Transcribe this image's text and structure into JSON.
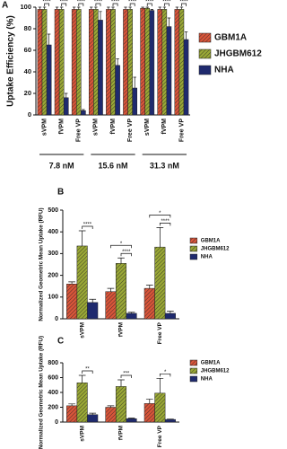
{
  "chart_data": [
    {
      "type": "bar",
      "panel": "A",
      "y_label": "Uptake Efficiency (%)",
      "categories": [
        "sVPM",
        "fVPM",
        "Free VP",
        "sVPM",
        "fVPM",
        "Free VP",
        "sVPM",
        "fVPM",
        "Free VP"
      ],
      "groups": [
        "7.8 nM",
        "15.6 nM",
        "31.3 nM"
      ],
      "series": [
        {
          "name": "GBM1A",
          "color": "#d9553a",
          "hatch": true,
          "values": [
            98,
            98,
            98,
            98,
            98,
            98,
            99,
            98,
            98
          ],
          "errors": [
            2,
            2,
            2,
            2,
            2,
            2,
            1,
            2,
            2
          ]
        },
        {
          "name": "JHGBM612",
          "color": "#9aa836",
          "hatch": true,
          "values": [
            98,
            98,
            98,
            98,
            98,
            98,
            99,
            98,
            98
          ],
          "errors": [
            2,
            2,
            2,
            2,
            2,
            2,
            1,
            2,
            2
          ]
        },
        {
          "name": "NHA",
          "color": "#1f2a6e",
          "hatch": false,
          "values": [
            65,
            16,
            4,
            88,
            46,
            25,
            97,
            82,
            70
          ],
          "errors": [
            10,
            4,
            1,
            8,
            6,
            10,
            1,
            8,
            7
          ]
        }
      ],
      "annotations": [
        [
          "****"
        ],
        [
          "****"
        ],
        [
          "****"
        ],
        [
          "****"
        ],
        [
          "****"
        ],
        [
          "****"
        ],
        [
          "****"
        ],
        [
          "****"
        ],
        [
          "****"
        ]
      ],
      "ylim": [
        0,
        100
      ],
      "yticks": [
        0,
        20,
        40,
        60,
        80,
        100
      ]
    },
    {
      "type": "bar",
      "panel": "B",
      "y_label": "Normalized Geometric Mean Uptake (RFU)",
      "categories": [
        "sVPM",
        "fVPM",
        "Free VP"
      ],
      "series": [
        {
          "name": "GBM1A",
          "color": "#d9553a",
          "hatch": true,
          "values": [
            160,
            125,
            140
          ],
          "errors": [
            10,
            15,
            15
          ]
        },
        {
          "name": "JHGBM612",
          "color": "#9aa836",
          "hatch": true,
          "values": [
            335,
            255,
            330
          ],
          "errors": [
            70,
            25,
            90
          ]
        },
        {
          "name": "NHA",
          "color": "#1f2a6e",
          "hatch": false,
          "values": [
            75,
            25,
            25
          ],
          "errors": [
            15,
            5,
            10
          ]
        }
      ],
      "annotations": [
        [
          "****"
        ],
        [
          "*",
          "****"
        ],
        [
          "*",
          "****"
        ]
      ],
      "ylim": [
        0,
        500
      ],
      "yticks": [
        0,
        100,
        200,
        300,
        400,
        500
      ]
    },
    {
      "type": "bar",
      "panel": "C",
      "y_label": "Normalized Geometric Mean Uptake (RFU)",
      "categories": [
        "sVPM",
        "fVPM",
        "Free VP"
      ],
      "series": [
        {
          "name": "GBM1A",
          "color": "#d9553a",
          "hatch": true,
          "values": [
            220,
            200,
            250
          ],
          "errors": [
            25,
            20,
            60
          ]
        },
        {
          "name": "JHGBM612",
          "color": "#9aa836",
          "hatch": true,
          "values": [
            530,
            480,
            390
          ],
          "errors": [
            100,
            90,
            200
          ]
        },
        {
          "name": "NHA",
          "color": "#1f2a6e",
          "hatch": false,
          "values": [
            100,
            45,
            35
          ],
          "errors": [
            20,
            8,
            5
          ]
        }
      ],
      "annotations": [
        [
          "**"
        ],
        [
          "***"
        ],
        [
          "*"
        ]
      ],
      "ylim": [
        0,
        800
      ],
      "yticks": [
        0,
        200,
        400,
        600,
        800
      ]
    }
  ]
}
